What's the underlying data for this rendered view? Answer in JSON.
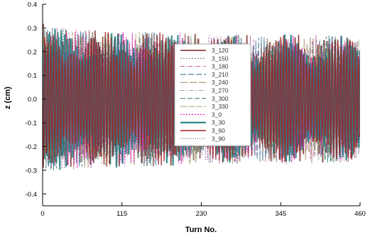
{
  "chart_data": {
    "type": "line",
    "xlabel": "Turn No.",
    "ylabel": "z (cm)",
    "xlim": [
      0,
      460
    ],
    "ylim": [
      -0.45,
      0.4
    ],
    "x_ticks": [
      0,
      115,
      230,
      345,
      460
    ],
    "x_tick_labels": [
      "0",
      "115",
      "230",
      "345",
      "460"
    ],
    "y_ticks": [
      0.4,
      0.3,
      0.2,
      0.1,
      0.0,
      -0.1,
      -0.2,
      -0.3,
      -0.4
    ],
    "y_tick_labels": [
      "0.4",
      "0.3",
      "0.2",
      "0.1",
      "0.0",
      "-0.1",
      "-0.2",
      "-0.3",
      "-0.4"
    ],
    "grid": false,
    "legend_position": "center-right",
    "envelope": {
      "turns": [
        0,
        5,
        15,
        30,
        50,
        100,
        150,
        200,
        250,
        300,
        345,
        355,
        360,
        400,
        460
      ],
      "upper": [
        0.33,
        0.315,
        0.305,
        0.3,
        0.295,
        0.29,
        0.285,
        0.28,
        0.275,
        0.27,
        0.265,
        0.28,
        0.28,
        0.27,
        0.265
      ],
      "lower": [
        -0.33,
        -0.315,
        -0.305,
        -0.3,
        -0.295,
        -0.29,
        -0.285,
        -0.28,
        -0.275,
        -0.27,
        -0.265,
        -0.28,
        -0.28,
        -0.27,
        -0.265
      ]
    },
    "series": [
      {
        "name": "3_120",
        "color": "#7a2020",
        "dash": "solid",
        "width": 1.6
      },
      {
        "name": "3_150",
        "color": "#8a5a9a",
        "dash": "2,2",
        "width": 1
      },
      {
        "name": "3_180",
        "color": "#c050a0",
        "dash": "6,2,1,2",
        "width": 1
      },
      {
        "name": "3_210",
        "color": "#2a6a8a",
        "dash": "8,3",
        "width": 1
      },
      {
        "name": "3_240",
        "color": "#9a7a50",
        "dash": "10,3",
        "width": 1
      },
      {
        "name": "3_270",
        "color": "#7aaa80",
        "dash": "5,2,1,2,1,2",
        "width": 1
      },
      {
        "name": "3_300",
        "color": "#3a7070",
        "dash": "7,3",
        "width": 1
      },
      {
        "name": "3_330",
        "color": "#b0a070",
        "dash": "9,2",
        "width": 1
      },
      {
        "name": "3_0",
        "color": "#e020c0",
        "dash": "2,2",
        "width": 1.2
      },
      {
        "name": "3_30",
        "color": "#208080",
        "dash": "solid",
        "width": 2.2
      },
      {
        "name": "3_60",
        "color": "#a02020",
        "dash": "solid",
        "width": 1.4
      },
      {
        "name": "3_90",
        "color": "#6a4070",
        "dash": "1,2",
        "width": 1
      }
    ]
  }
}
